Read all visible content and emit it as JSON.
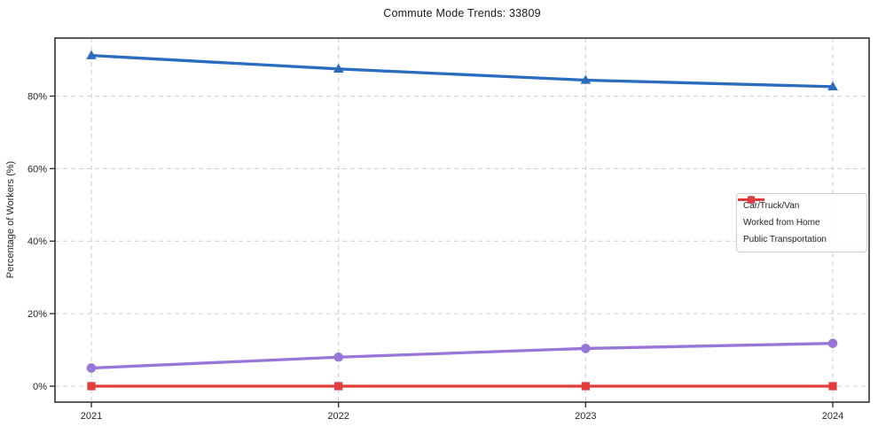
{
  "page": {
    "background": "#ffffff"
  },
  "chart_data": {
    "type": "line",
    "title": "Commute Mode Trends: 33809",
    "xlabel": "",
    "ylabel": "Percentage of Workers (%)",
    "x": [
      "2021",
      "2022",
      "2023",
      "2024"
    ],
    "yticks": {
      "values": [
        0,
        20,
        40,
        60,
        80
      ],
      "labels": [
        "0%",
        "20%",
        "40%",
        "60%",
        "80%"
      ]
    },
    "ylim": [
      -4.4,
      96
    ],
    "grid": true,
    "grid_style": "dashed",
    "legend_position": "center-right",
    "series": [
      {
        "name": "Car/Truck/Van",
        "marker": "triangle",
        "color": "#2b6cbe",
        "values": [
          91.2,
          87.5,
          84.4,
          82.6
        ]
      },
      {
        "name": "Worked from Home",
        "marker": "circle",
        "color": "#9776d8",
        "values": [
          5.0,
          8.0,
          10.4,
          11.8
        ]
      },
      {
        "name": "Public Transportation",
        "marker": "square",
        "color": "#e23c3c",
        "values": [
          0.0,
          0.0,
          0.0,
          0.0
        ]
      }
    ],
    "axis_colors": {
      "spine": "#333333",
      "grid": "#cdcdcd",
      "tick_label": "#262626"
    }
  }
}
